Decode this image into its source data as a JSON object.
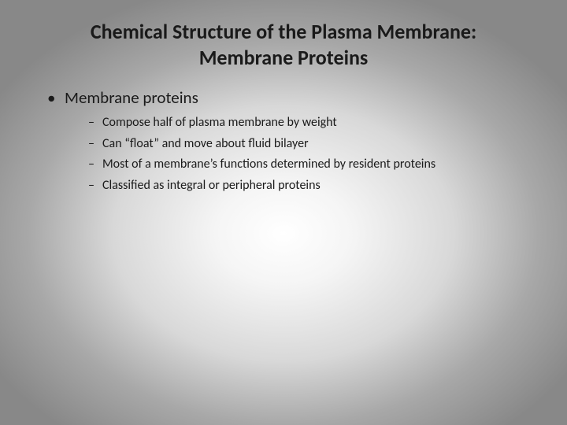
{
  "slide": {
    "title_line1": "Chemical Structure of the Plasma Membrane:",
    "title_line2": "Membrane Proteins",
    "main_bullet": "Membrane proteins",
    "sub_bullets": [
      "Compose half of plasma membrane by weight",
      "Can “float” and move about fluid bilayer",
      "Most of a membrane’s functions determined by resident proteins",
      "Classified as integral or peripheral proteins"
    ]
  },
  "styling": {
    "background_gradient": {
      "type": "radial",
      "center": "50% 55%",
      "stops": [
        "#ffffff",
        "#f5f5f5",
        "#d8d8d8",
        "#a8a8a8",
        "#888888"
      ]
    },
    "title_fontsize": 26,
    "title_fontweight": "bold",
    "title_color": "#1a1a1a",
    "main_bullet_fontsize": 21,
    "sub_bullet_fontsize": 16,
    "text_color": "#1a1a1a",
    "font_family": "Calibri"
  }
}
